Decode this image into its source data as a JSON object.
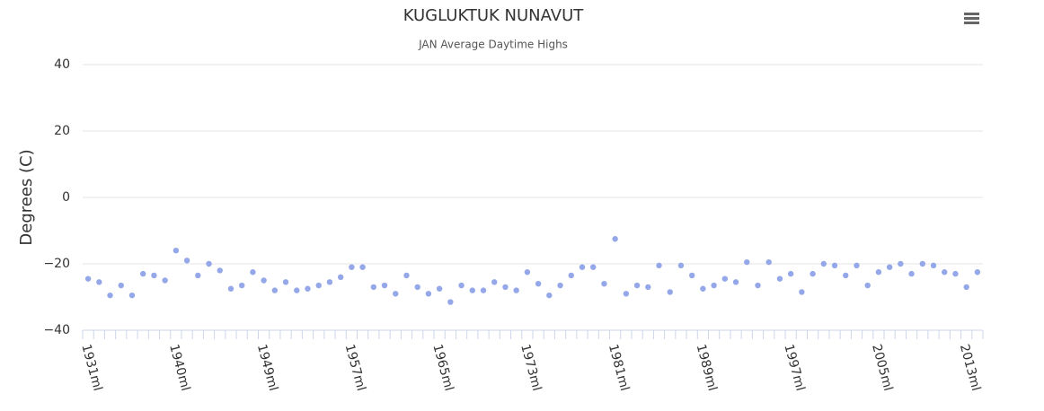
{
  "chart_data": {
    "type": "scatter",
    "title": "KUGLUKTUK NUNAVUT",
    "subtitle": "JAN Average Daytime Highs",
    "y_axis_label": "Degrees (C)",
    "color": "#94a7e8",
    "grid": true,
    "ylim": [
      -40,
      40
    ],
    "yticks": [
      {
        "value": -40,
        "label": "−40"
      },
      {
        "value": -20,
        "label": "−20"
      },
      0,
      20,
      40
    ],
    "categories": [
      "1931ml",
      null,
      null,
      null,
      null,
      null,
      null,
      null,
      "1940ml",
      null,
      null,
      null,
      null,
      null,
      null,
      null,
      "1949ml",
      null,
      null,
      null,
      null,
      null,
      null,
      null,
      "1957ml",
      null,
      null,
      null,
      null,
      null,
      null,
      null,
      "1965ml",
      null,
      null,
      null,
      null,
      null,
      null,
      null,
      "1973ml",
      null,
      null,
      null,
      null,
      null,
      null,
      null,
      "1981ml",
      null,
      null,
      null,
      null,
      null,
      null,
      null,
      "1989ml",
      null,
      null,
      null,
      null,
      null,
      null,
      null,
      "1997ml",
      null,
      null,
      null,
      null,
      null,
      null,
      null,
      "2005ml",
      null,
      null,
      null,
      null,
      null,
      null,
      null,
      "2013ml",
      null
    ],
    "values": [
      -24.5,
      -25.5,
      -29.5,
      -26.5,
      -29.5,
      -23,
      -23.5,
      -25,
      -16,
      -19,
      -23.5,
      -20,
      -22,
      -27.5,
      -26.5,
      -22.5,
      -25,
      -28,
      -25.5,
      -28,
      -27.5,
      -26.5,
      -25.5,
      -24,
      -21,
      -21,
      -27,
      -26.5,
      -29,
      -23.5,
      -27,
      -29,
      -27.5,
      -31.5,
      -26.5,
      -28,
      -28,
      -25.5,
      -27,
      -28,
      -22.5,
      -26,
      -29.5,
      -26.5,
      -23.5,
      -21,
      -21,
      -26,
      -12.5,
      -29,
      -26.5,
      -27,
      -20.5,
      -28.5,
      -20.5,
      -23.5,
      -27.5,
      -26.5,
      -24.5,
      -25.5,
      -19.5,
      -26.5,
      -19.5,
      -24.5,
      -23,
      -28.5,
      -23,
      -20,
      -20.5,
      -23.5,
      -20.5,
      -26.5,
      -22.5,
      -21,
      -20,
      -23,
      -20,
      -20.5,
      -22.5,
      -23,
      -27,
      -22.5
    ]
  }
}
